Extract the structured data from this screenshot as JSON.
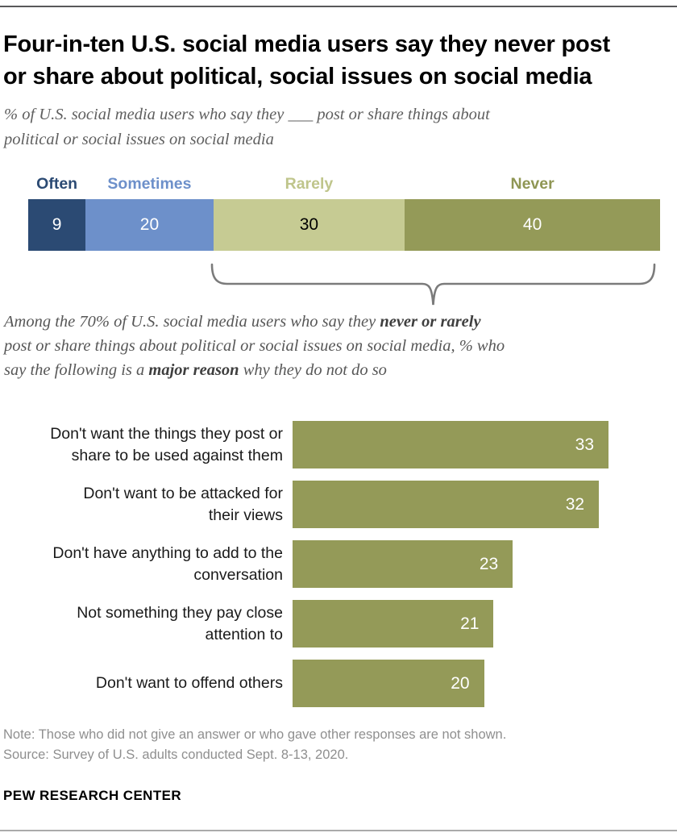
{
  "header": {
    "title_lines": [
      "Four-in-ten U.S. social media users say they never post",
      "or share about political, social issues on social media"
    ],
    "subtitle_lines": [
      "% of U.S. social media users who say they ___ post or share things about",
      "political or social issues on social media"
    ]
  },
  "intro": {
    "line1_regular": "Among the 70% of U.S. social media users who say they ",
    "line1_bold": "never or rarely",
    "line2": "post or share things about political or social issues on social media, % who",
    "line3_pre": "say the following is a ",
    "line3_bold": "major reason",
    "line3_post": " why they do not do so"
  },
  "chart_data": [
    {
      "type": "bar",
      "variant": "stacked-horizontal-100pct",
      "title": "% of U.S. social media users who say they ___ post or share things about political or social issues on social media",
      "categories": [
        "Often",
        "Sometimes",
        "Rarely",
        "Never"
      ],
      "values": [
        9,
        20,
        30,
        40
      ],
      "segments": [
        {
          "label": "Often",
          "value": 9,
          "color": "#2b4a73",
          "label_color": "#2b4a73",
          "value_color": "#ffffff"
        },
        {
          "label": "Sometimes",
          "value": 20,
          "color": "#6d90ca",
          "label_color": "#6d90ca",
          "value_color": "#ffffff"
        },
        {
          "label": "Rarely",
          "value": 30,
          "color": "#c6cb93",
          "label_color": "#bfc58b",
          "value_color": "#000000"
        },
        {
          "label": "Never",
          "value": 40,
          "color": "#949a58",
          "label_color": "#8f9654",
          "value_color": "#ffffff"
        }
      ],
      "legend_position": "above-bar",
      "grid": false,
      "note": "brace groups Rarely + Never (70%)"
    },
    {
      "type": "bar",
      "variant": "horizontal",
      "title": "% who say the following is a major reason why they do not post or share",
      "categories": [
        "Don't want the things they post or share to be used against them",
        "Don't want to be attacked for their views",
        "Don't have anything to add to the conversation",
        "Not something they pay close attention to",
        "Don't want to offend others"
      ],
      "values": [
        33,
        32,
        23,
        21,
        20
      ],
      "xlim": [
        0,
        40
      ],
      "bar_color": "#949a58",
      "value_color": "#ffffff",
      "grid": false,
      "rows": [
        {
          "label_lines": [
            "Don't want the things they post or",
            "share to be used against them"
          ],
          "value": 33
        },
        {
          "label_lines": [
            "Don't want to be attacked for",
            "their views"
          ],
          "value": 32
        },
        {
          "label_lines": [
            "Don't have anything to add to the",
            "conversation"
          ],
          "value": 23
        },
        {
          "label_lines": [
            "Not something they pay close",
            "attention to"
          ],
          "value": 21
        },
        {
          "label_lines": [
            "Don't want to offend others"
          ],
          "value": 20
        }
      ]
    }
  ],
  "footer": {
    "note": "Note: Those who did not give an answer or who gave other responses are not shown.",
    "source": "Source: Survey of U.S. adults conducted Sept. 8-13, 2020.",
    "brand": "PEW RESEARCH CENTER"
  },
  "colors": {
    "often": "#2b4a73",
    "sometimes": "#6d90ca",
    "rarely": "#c6cb93",
    "never": "#949a58",
    "top_rule": "#58585a",
    "bottom_rule": "#ababab",
    "brace": "#7b7b7b",
    "text_gray": "#575757",
    "note_gray": "#8f8f8f"
  }
}
